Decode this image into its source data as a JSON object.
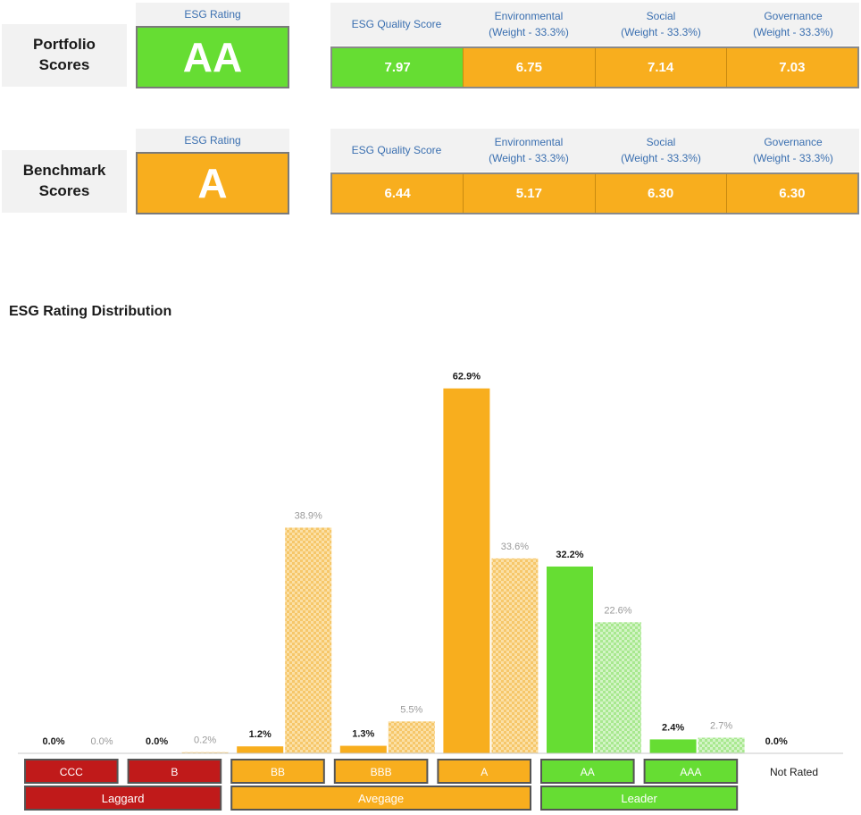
{
  "colors": {
    "orange": "#f8ae1e",
    "green": "#66dd33",
    "red": "#c01a1a",
    "bench_orange": "#f6c76a",
    "bench_green": "#a8e88f"
  },
  "portfolio": {
    "label_line1": "Portfolio",
    "label_line2": "Scores",
    "esg_rating_header": "ESG Rating",
    "esg_rating": "AA",
    "headers": {
      "quality": "ESG Quality Score",
      "env_line1": "Environmental",
      "env_line2": "(Weight - 33.3%)",
      "soc_line1": "Social",
      "soc_line2": "(Weight - 33.3%)",
      "gov_line1": "Governance",
      "gov_line2": "(Weight - 33.3%)"
    },
    "scores": {
      "quality": "7.97",
      "environmental": "6.75",
      "social": "7.14",
      "governance": "7.03"
    }
  },
  "benchmark": {
    "label_line1": "Benchmark",
    "label_line2": "Scores",
    "esg_rating_header": "ESG Rating",
    "esg_rating": "A",
    "headers": {
      "quality": "ESG Quality Score",
      "env_line1": "Environmental",
      "env_line2": "(Weight - 33.3%)",
      "soc_line1": "Social",
      "soc_line2": "(Weight - 33.3%)",
      "gov_line1": "Governance",
      "gov_line2": "(Weight - 33.3%)"
    },
    "scores": {
      "quality": "6.44",
      "environmental": "5.17",
      "social": "6.30",
      "governance": "6.30"
    }
  },
  "chart_data": {
    "type": "bar",
    "title": "ESG Rating Distribution",
    "categories": [
      "CCC",
      "B",
      "BB",
      "BBB",
      "A",
      "AA",
      "AAA",
      "Not Rated"
    ],
    "groups": [
      {
        "label": "Laggard",
        "categories": [
          "CCC",
          "B"
        ],
        "color": "#c01a1a"
      },
      {
        "label": "Avegage",
        "categories": [
          "BB",
          "BBB",
          "A"
        ],
        "color": "#f8ae1e"
      },
      {
        "label": "Leader",
        "categories": [
          "AA",
          "AAA"
        ],
        "color": "#66dd33"
      }
    ],
    "series": [
      {
        "values": [
          0.0,
          0.0,
          1.2,
          1.3,
          62.9,
          32.2,
          2.4,
          0.0
        ],
        "labels": [
          "0.0%",
          "0.0%",
          "1.2%",
          "1.3%",
          "62.9%",
          "32.2%",
          "2.4%",
          "0.0%"
        ]
      },
      {
        "values": [
          0.0,
          0.2,
          38.9,
          5.5,
          33.6,
          22.6,
          2.7,
          null
        ],
        "labels": [
          "0.0%",
          "0.2%",
          "38.9%",
          "5.5%",
          "33.6%",
          "22.6%",
          "2.7%",
          ""
        ]
      }
    ],
    "ylim": [
      0,
      65
    ]
  }
}
